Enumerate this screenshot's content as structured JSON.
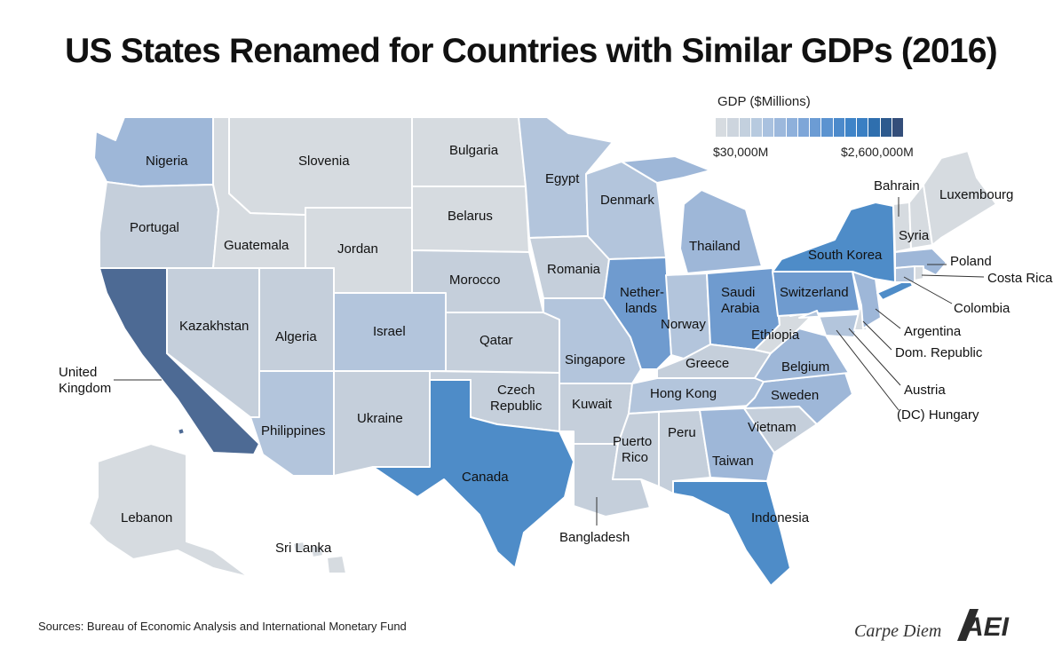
{
  "title": "US States Renamed for Countries with Similar GDPs (2016)",
  "legend": {
    "title": "GDP ($Millions)",
    "min_label": "$30,000M",
    "max_label": "$2,600,000M",
    "ramp": [
      "#d6dbe0",
      "#cdd5de",
      "#c3d0de",
      "#b7cadf",
      "#a9c1df",
      "#9cb8dc",
      "#8eb0db",
      "#7ea6d8",
      "#6c9cd4",
      "#5b93d0",
      "#4c8acb",
      "#3f84c8",
      "#3a7fc3",
      "#2f6fae",
      "#2d5a8e",
      "#344e7a"
    ]
  },
  "colors": {
    "c1": "#d6dbe0",
    "c2": "#c5cfdb",
    "c3": "#b3c5dc",
    "c4": "#9eb7d8",
    "c5": "#6f9bcf",
    "c6": "#4e8cc8",
    "c7": "#4d6a94",
    "border": "#ffffff"
  },
  "states": [
    {
      "state": "WA",
      "country": "Nigeria",
      "shade": 4
    },
    {
      "state": "OR",
      "country": "Portugal",
      "shade": 2
    },
    {
      "state": "CA",
      "country": "United Kingdom",
      "shade": 7
    },
    {
      "state": "NV",
      "country": "Kazakhstan",
      "shade": 2
    },
    {
      "state": "ID",
      "country": "Guatemala",
      "shade": 1
    },
    {
      "state": "MT",
      "country": "Slovenia",
      "shade": 1
    },
    {
      "state": "WY",
      "country": "Jordan",
      "shade": 1
    },
    {
      "state": "UT",
      "country": "Algeria",
      "shade": 2
    },
    {
      "state": "CO",
      "country": "Israel",
      "shade": 3
    },
    {
      "state": "AZ",
      "country": "Philippines",
      "shade": 3
    },
    {
      "state": "NM",
      "country": "Ukraine",
      "shade": 2
    },
    {
      "state": "ND",
      "country": "Bulgaria",
      "shade": 1
    },
    {
      "state": "SD",
      "country": "Belarus",
      "shade": 1
    },
    {
      "state": "NE",
      "country": "Morocco",
      "shade": 2
    },
    {
      "state": "KS",
      "country": "Qatar",
      "shade": 2
    },
    {
      "state": "OK",
      "country": "Czech Republic",
      "shade": 2
    },
    {
      "state": "TX",
      "country": "Canada",
      "shade": 6
    },
    {
      "state": "MN",
      "country": "Egypt",
      "shade": 3
    },
    {
      "state": "IA",
      "country": "Romania",
      "shade": 2
    },
    {
      "state": "MO",
      "country": "Singapore",
      "shade": 3
    },
    {
      "state": "AR",
      "country": "Kuwait",
      "shade": 2
    },
    {
      "state": "LA",
      "country": "Bangladesh",
      "shade": 2
    },
    {
      "state": "WI",
      "country": "Denmark",
      "shade": 3
    },
    {
      "state": "IL",
      "country": "Netherlands",
      "shade": 5
    },
    {
      "state": "MI",
      "country": "Thailand",
      "shade": 4
    },
    {
      "state": "IN",
      "country": "Norway",
      "shade": 3
    },
    {
      "state": "OH",
      "country": "Saudi Arabia",
      "shade": 5
    },
    {
      "state": "KY",
      "country": "Greece",
      "shade": 2
    },
    {
      "state": "TN",
      "country": "Hong Kong",
      "shade": 3
    },
    {
      "state": "MS",
      "country": "Puerto Rico",
      "shade": 2
    },
    {
      "state": "AL",
      "country": "Peru",
      "shade": 2
    },
    {
      "state": "GA",
      "country": "Taiwan",
      "shade": 4
    },
    {
      "state": "FL",
      "country": "Indonesia",
      "shade": 6
    },
    {
      "state": "SC",
      "country": "Vietnam",
      "shade": 2
    },
    {
      "state": "NC",
      "country": "Sweden",
      "shade": 4
    },
    {
      "state": "VA",
      "country": "Belgium",
      "shade": 4
    },
    {
      "state": "WV",
      "country": "Ethiopia",
      "shade": 1
    },
    {
      "state": "PA",
      "country": "Switzerland",
      "shade": 5
    },
    {
      "state": "NY",
      "country": "South Korea",
      "shade": 6
    },
    {
      "state": "NJ",
      "country": "Argentina",
      "shade": 4
    },
    {
      "state": "MD",
      "country": "Austria",
      "shade": 3
    },
    {
      "state": "DE",
      "country": "Dom. Republic",
      "shade": 1
    },
    {
      "state": "DC",
      "country": "(DC) Hungary",
      "shade": 2
    },
    {
      "state": "CT",
      "country": "Colombia",
      "shade": 3
    },
    {
      "state": "RI",
      "country": "Costa Rica",
      "shade": 1
    },
    {
      "state": "MA",
      "country": "Poland",
      "shade": 4
    },
    {
      "state": "VT",
      "country": "Bahrain",
      "shade": 1
    },
    {
      "state": "NH",
      "country": "Syria",
      "shade": 1
    },
    {
      "state": "ME",
      "country": "Luxembourg",
      "shade": 1
    },
    {
      "state": "AK",
      "country": "Lebanon",
      "shade": 1
    },
    {
      "state": "HI",
      "country": "Sri Lanka",
      "shade": 1
    }
  ],
  "sources": "Sources: Bureau of Economic Analysis and International Monetary Fund",
  "brand": "Carpe Diem",
  "logo_text": "AEI"
}
